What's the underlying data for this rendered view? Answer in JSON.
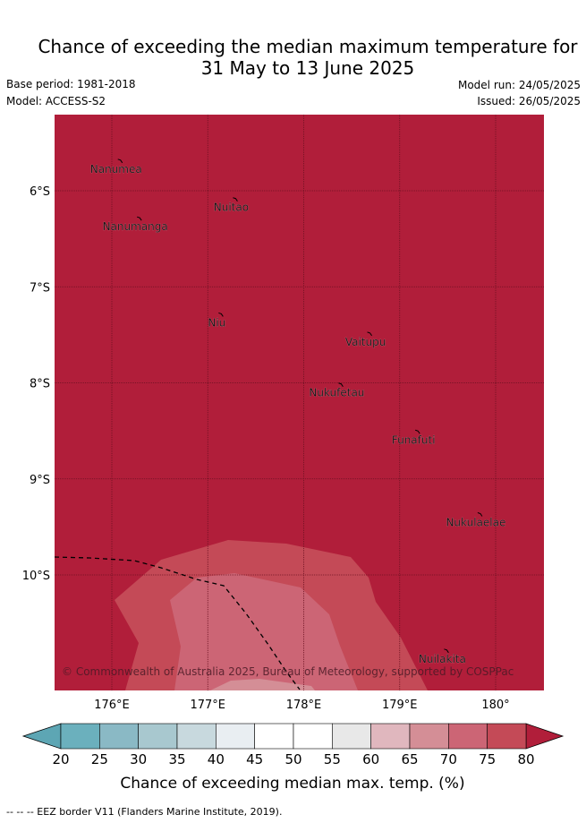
{
  "title": {
    "line1": "Chance of exceeding the median maximum temperature for",
    "line2": "31 May to 13 June 2025"
  },
  "meta": {
    "base_period": "Base period: 1981-2018",
    "model": "Model: ACCESS-S2",
    "model_run": "Model run: 24/05/2025",
    "issued": "Issued: 26/05/2025"
  },
  "map": {
    "lon_range": [
      175.5,
      180.5
    ],
    "lat_range": [
      -11.0,
      -5.0
    ],
    "lat_ticks": [
      {
        "value": -6,
        "label": "6°S"
      },
      {
        "value": -7,
        "label": "7°S"
      },
      {
        "value": -8,
        "label": "8°S"
      },
      {
        "value": -9,
        "label": "9°S"
      },
      {
        "value": -10,
        "label": "10°S"
      }
    ],
    "lon_ticks": [
      {
        "value": 176,
        "label": "176°E"
      },
      {
        "value": 177,
        "label": "177°E"
      },
      {
        "value": 178,
        "label": "178°E"
      },
      {
        "value": 179,
        "label": "179°E"
      },
      {
        "value": 180,
        "label": "180°"
      }
    ],
    "islands": [
      {
        "name": "Nanumea",
        "lon": 176.1,
        "lat": -5.7
      },
      {
        "name": "Nuitao",
        "lon": 177.3,
        "lat": -6.1
      },
      {
        "name": "Nanumanga",
        "lon": 176.3,
        "lat": -6.3
      },
      {
        "name": "Niu",
        "lon": 177.15,
        "lat": -7.3
      },
      {
        "name": "Vaitupu",
        "lon": 178.7,
        "lat": -7.5
      },
      {
        "name": "Nukufetau",
        "lon": 178.4,
        "lat": -8.03
      },
      {
        "name": "Funafuti",
        "lon": 179.2,
        "lat": -8.52
      },
      {
        "name": "Nukulaelae",
        "lon": 179.85,
        "lat": -9.38
      },
      {
        "name": "Nuilakita",
        "lon": 179.5,
        "lat": -10.8
      }
    ],
    "copyright": "© Commonwealth of Australia 2025, Bureau of Meteorology, supported by COSPPac",
    "colors": {
      "background": "#b11e3a",
      "band_75_80": "#c44a57",
      "band_70_75": "#cc6575",
      "band_65_70": "#d48e96"
    }
  },
  "colorbar": {
    "label": "Chance of exceeding median max. temp. (%)",
    "ticks": [
      "20",
      "25",
      "30",
      "35",
      "40",
      "45",
      "50",
      "55",
      "60",
      "65",
      "70",
      "75",
      "80"
    ],
    "colors": [
      "#6bb0bd",
      "#8ab9c5",
      "#a8c8cf",
      "#c8d9de",
      "#e9eef2",
      "#ffffff",
      "#ffffff",
      "#e8e8e8",
      "#e0b7be",
      "#d48e96",
      "#cc6575",
      "#c44a57"
    ],
    "under_color": "#5da6b4",
    "over_color": "#b11e3a"
  },
  "footer": {
    "legend_text": "-- -- -- EEZ border V11 (Flanders Marine Institute, 2019)."
  }
}
